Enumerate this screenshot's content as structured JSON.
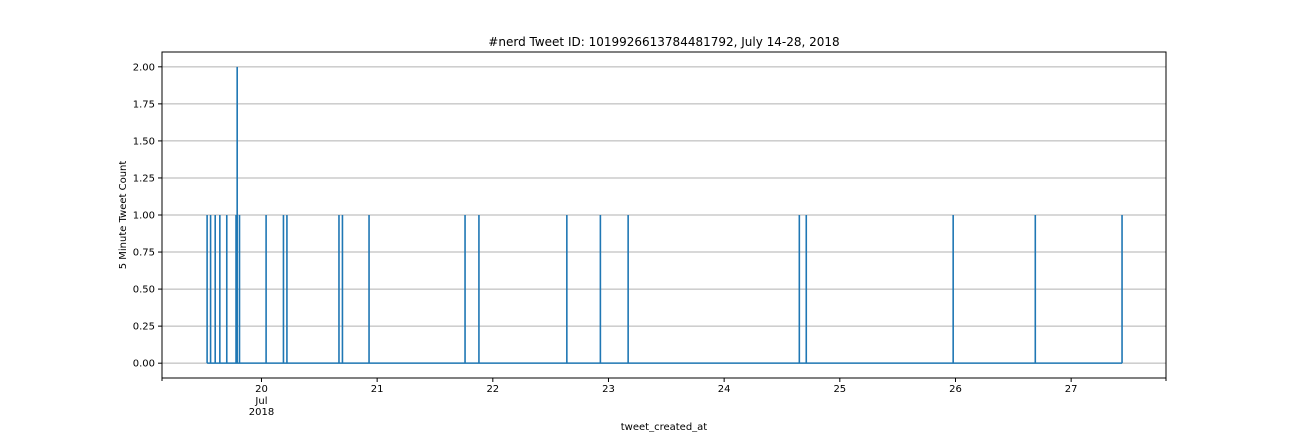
{
  "chart_data": {
    "type": "line",
    "title": "#nerd Tweet ID: 1019926613784481792, July 14-28, 2018",
    "xlabel": "tweet_created_at",
    "ylabel": "5 Minute Tweet Count",
    "xlim": [
      19.14,
      27.82
    ],
    "ylim": [
      -0.1,
      2.1
    ],
    "grid": "y",
    "color": "#1f77b4",
    "x_ticks": [
      {
        "value": 20,
        "label": "20",
        "sublabels": [
          "Jul",
          "2018"
        ]
      },
      {
        "value": 21,
        "label": "21"
      },
      {
        "value": 22,
        "label": "22"
      },
      {
        "value": 23,
        "label": "23"
      },
      {
        "value": 24,
        "label": "24"
      },
      {
        "value": 25,
        "label": "25"
      },
      {
        "value": 26,
        "label": "26"
      },
      {
        "value": 27,
        "label": "27"
      }
    ],
    "y_ticks": [
      "0.00",
      "0.25",
      "0.50",
      "0.75",
      "1.00",
      "1.25",
      "1.50",
      "1.75",
      "2.00"
    ],
    "x_start": 19.53,
    "x_end": 27.44,
    "spikes": [
      {
        "x": 19.53,
        "y": 1
      },
      {
        "x": 19.56,
        "y": 1
      },
      {
        "x": 19.6,
        "y": 1
      },
      {
        "x": 19.64,
        "y": 1
      },
      {
        "x": 19.7,
        "y": 1
      },
      {
        "x": 19.78,
        "y": 1
      },
      {
        "x": 19.79,
        "y": 2
      },
      {
        "x": 19.81,
        "y": 1
      },
      {
        "x": 20.04,
        "y": 1
      },
      {
        "x": 20.19,
        "y": 1
      },
      {
        "x": 20.22,
        "y": 1
      },
      {
        "x": 20.67,
        "y": 1
      },
      {
        "x": 20.7,
        "y": 1
      },
      {
        "x": 20.93,
        "y": 1
      },
      {
        "x": 21.76,
        "y": 1
      },
      {
        "x": 21.88,
        "y": 1
      },
      {
        "x": 22.64,
        "y": 1
      },
      {
        "x": 22.93,
        "y": 1
      },
      {
        "x": 23.17,
        "y": 1
      },
      {
        "x": 24.65,
        "y": 1
      },
      {
        "x": 24.71,
        "y": 1
      },
      {
        "x": 25.98,
        "y": 1
      },
      {
        "x": 26.69,
        "y": 1
      },
      {
        "x": 27.44,
        "y": 1
      }
    ]
  }
}
